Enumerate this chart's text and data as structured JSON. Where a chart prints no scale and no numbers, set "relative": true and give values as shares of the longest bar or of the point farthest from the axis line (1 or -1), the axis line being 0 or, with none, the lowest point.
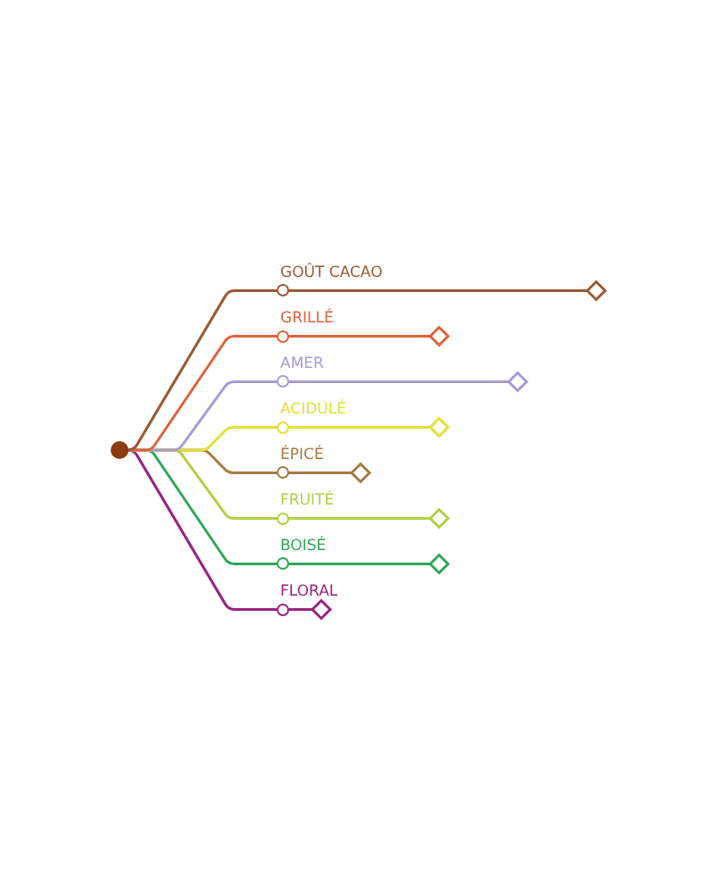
{
  "chart_data": {
    "type": "lollipop",
    "orientation": "horizontal",
    "relative": true,
    "marker": "diamond",
    "categories": [
      "GOÛT CACAO",
      "GRILLÉ",
      "AMER",
      "ACIDULÉ",
      "ÉPICÉ",
      "FRUITÉ",
      "BOISÉ",
      "FLORAL"
    ],
    "values": [
      1,
      0.5,
      0.75,
      0.5,
      0.25,
      0.5,
      0.5,
      0.125
    ],
    "colors": [
      "#9a5a36",
      "#e0603c",
      "#a99bd3",
      "#e2e03a",
      "#a57a43",
      "#b2cf45",
      "#2fa65a",
      "#97237f"
    ]
  }
}
